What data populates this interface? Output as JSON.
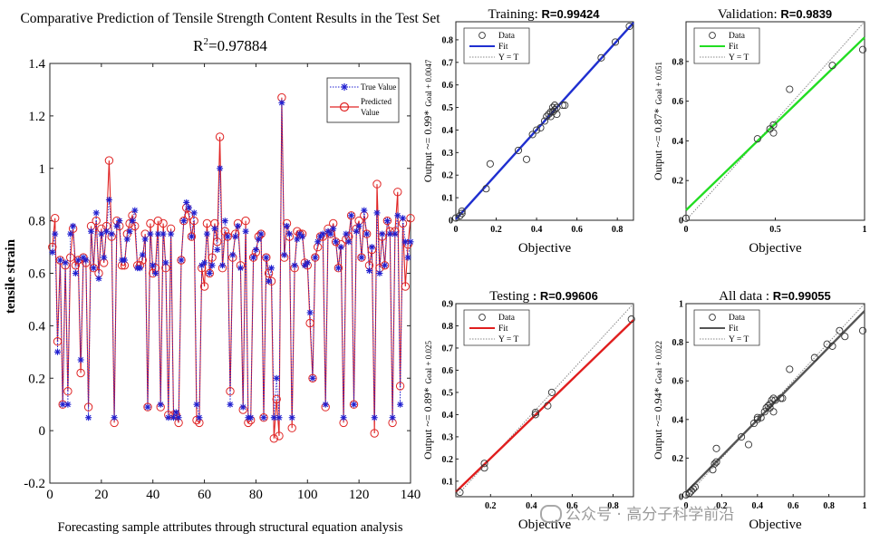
{
  "colors": {
    "true_value": "#1f1fd0",
    "predicted": "#e02424",
    "training_fit": "#1f2fd0",
    "validation_fit": "#22dd22",
    "testing_fit": "#e01e1e",
    "alldata_fit": "#555555",
    "marker": "#333333",
    "yt_line": "#888888"
  },
  "watermark": {
    "icon": "wechat-icon",
    "text": "公众号 · 高分子科学前沿"
  },
  "chart_data": [
    {
      "type": "line",
      "title": "Comparative Prediction of Tensile Strength Content Results in the Test Set",
      "subtitle": "R",
      "subtitle_sup": "2",
      "subtitle_rest": "=0.97884",
      "xlabel": "Forecasting sample attributes through structural equation analysis",
      "ylabel": "tensile strain",
      "xlim": [
        0,
        140
      ],
      "ylim": [
        -0.2,
        1.4
      ],
      "xticks": [
        0,
        20,
        40,
        60,
        80,
        100,
        120,
        140
      ],
      "yticks": [
        -0.2,
        0,
        0.2,
        0.4,
        0.6,
        0.8,
        1,
        1.2,
        1.4
      ],
      "ytick_labels": [
        "-0.2",
        "0",
        "0.2",
        "0.4",
        "0.6",
        "0.8",
        "1",
        "1.2",
        "1.4"
      ],
      "legend": {
        "position": "top-right",
        "entries": [
          "True Value",
          "Predicted",
          "Value"
        ]
      },
      "series": [
        {
          "name": "True Value",
          "values": [
            0.68,
            0.75,
            0.3,
            0.65,
            0.1,
            0.64,
            0.1,
            0.75,
            0.78,
            0.6,
            0.65,
            0.27,
            0.66,
            0.65,
            0.05,
            0.76,
            0.62,
            0.83,
            0.58,
            0.75,
            0.66,
            0.76,
            0.88,
            0.75,
            0.05,
            0.78,
            0.8,
            0.65,
            0.65,
            0.73,
            0.76,
            0.8,
            0.84,
            0.62,
            0.62,
            0.67,
            0.73,
            0.09,
            0.75,
            0.63,
            0.6,
            0.75,
            0.1,
            0.75,
            0.64,
            0.05,
            0.75,
            0.05,
            0.07,
            0.05,
            0.65,
            0.8,
            0.87,
            0.85,
            0.74,
            0.83,
            0.1,
            0.05,
            0.63,
            0.64,
            0.75,
            0.6,
            0.63,
            0.77,
            0.69,
            1.0,
            0.63,
            0.8,
            0.74,
            0.1,
            0.67,
            0.74,
            0.78,
            0.62,
            0.09,
            0.76,
            0.05,
            0.05,
            0.66,
            0.69,
            0.73,
            0.75,
            0.05,
            0.66,
            0.57,
            0.62,
            0.05,
            0.2,
            0.05,
            1.25,
            0.67,
            0.78,
            0.75,
            0.05,
            0.63,
            0.73,
            0.75,
            0.74,
            0.63,
            0.64,
            0.45,
            0.2,
            0.66,
            0.72,
            0.74,
            0.75,
            0.1,
            0.76,
            0.75,
            0.77,
            0.72,
            0.62,
            0.7,
            0.05,
            0.75,
            0.72,
            0.82,
            0.1,
            0.76,
            0.78,
            0.66,
            0.84,
            0.75,
            0.61,
            0.7,
            0.05,
            0.83,
            0.6,
            0.75,
            0.63,
            0.8,
            0.75,
            0.05,
            0.75,
            0.82,
            0.1,
            0.81,
            0.72,
            0.66,
            0.72
          ],
          "marker": "star"
        },
        {
          "name": "Predicted Value",
          "values": [
            0.7,
            0.81,
            0.34,
            0.65,
            0.1,
            0.63,
            0.15,
            0.66,
            0.77,
            0.63,
            0.65,
            0.22,
            0.66,
            0.64,
            0.09,
            0.78,
            0.62,
            0.8,
            0.6,
            0.77,
            0.64,
            0.78,
            1.03,
            0.74,
            0.03,
            0.8,
            0.78,
            0.63,
            0.63,
            0.75,
            0.79,
            0.82,
            0.78,
            0.63,
            0.63,
            0.65,
            0.75,
            0.09,
            0.79,
            0.6,
            0.62,
            0.8,
            0.09,
            0.79,
            0.62,
            0.06,
            0.77,
            0.06,
            0.06,
            0.03,
            0.65,
            0.8,
            0.85,
            0.82,
            0.74,
            0.8,
            0.04,
            0.03,
            0.62,
            0.55,
            0.79,
            0.6,
            0.66,
            0.79,
            0.72,
            1.12,
            0.62,
            0.76,
            0.74,
            0.15,
            0.66,
            0.75,
            0.79,
            0.63,
            0.08,
            0.8,
            0.03,
            0.04,
            0.66,
            0.68,
            0.74,
            0.75,
            0.05,
            0.66,
            0.6,
            0.57,
            -0.03,
            0.12,
            -0.02,
            1.27,
            0.66,
            0.79,
            0.74,
            0.01,
            0.62,
            0.76,
            0.75,
            0.75,
            0.64,
            0.63,
            0.41,
            0.2,
            0.66,
            0.7,
            0.74,
            0.74,
            0.09,
            0.77,
            0.75,
            0.79,
            0.72,
            0.62,
            0.71,
            0.03,
            0.73,
            0.74,
            0.82,
            0.1,
            0.77,
            0.8,
            0.66,
            0.82,
            0.75,
            0.63,
            0.69,
            -0.01,
            0.94,
            0.62,
            0.74,
            0.63,
            0.8,
            0.76,
            0.03,
            0.76,
            0.91,
            0.17,
            0.79,
            0.55,
            0.71,
            0.81
          ],
          "marker": "circle"
        }
      ]
    },
    {
      "type": "scatter",
      "id": "training",
      "title": "Training:",
      "r_text": "R=0.99424",
      "xlabel": "Objective",
      "ylabel_pre": "Output ~= 0.99*",
      "ylabel_post": "Goal + 0.0047",
      "xlim": [
        0,
        0.88
      ],
      "ylim": [
        0,
        0.88
      ],
      "xticks": [
        0,
        0.2,
        0.4,
        0.6,
        0.8
      ],
      "xtick_labels": [
        "0",
        "0.2",
        "0.4",
        "0.6",
        "0.8"
      ],
      "yticks": [
        0,
        0.1,
        0.2,
        0.3,
        0.4,
        0.5,
        0.6,
        0.7,
        0.8
      ],
      "ytick_labels": [
        "0",
        "0.1",
        "0.2",
        "0.3",
        "0.4",
        "0.5",
        "0.6",
        "0.7",
        "0.8"
      ],
      "fit": {
        "slope": 0.99,
        "intercept": 0.0047
      },
      "legend": {
        "position": "top-left",
        "entries": [
          "Data",
          "Fit",
          "Y = T"
        ]
      },
      "points": [
        [
          0.0,
          0.01
        ],
        [
          0.02,
          0.02
        ],
        [
          0.03,
          0.03
        ],
        [
          0.03,
          0.04
        ],
        [
          0.15,
          0.14
        ],
        [
          0.17,
          0.25
        ],
        [
          0.31,
          0.31
        ],
        [
          0.35,
          0.27
        ],
        [
          0.38,
          0.38
        ],
        [
          0.4,
          0.4
        ],
        [
          0.42,
          0.41
        ],
        [
          0.44,
          0.44
        ],
        [
          0.45,
          0.46
        ],
        [
          0.46,
          0.47
        ],
        [
          0.47,
          0.48
        ],
        [
          0.47,
          0.46
        ],
        [
          0.48,
          0.5
        ],
        [
          0.48,
          0.48
        ],
        [
          0.49,
          0.51
        ],
        [
          0.49,
          0.49
        ],
        [
          0.5,
          0.5
        ],
        [
          0.5,
          0.47
        ],
        [
          0.53,
          0.51
        ],
        [
          0.54,
          0.51
        ],
        [
          0.72,
          0.72
        ],
        [
          0.79,
          0.79
        ],
        [
          0.86,
          0.86
        ]
      ]
    },
    {
      "type": "scatter",
      "id": "validation",
      "title": "Validation:",
      "r_text": "R=0.9839",
      "xlabel": "Objective",
      "ylabel_pre": "Output ~= 0.87*",
      "ylabel_post": "Goal + 0.051",
      "xlim": [
        0,
        1
      ],
      "ylim": [
        0,
        1
      ],
      "xticks": [
        0,
        0.5,
        1
      ],
      "xtick_labels": [
        "0",
        "0.5",
        "1"
      ],
      "yticks": [
        0,
        0.2,
        0.4,
        0.6,
        0.8
      ],
      "ytick_labels": [
        "0",
        "0.2",
        "0.4",
        "0.6",
        "0.8"
      ],
      "fit": {
        "slope": 0.87,
        "intercept": 0.051
      },
      "legend": {
        "position": "top-left",
        "entries": [
          "Data",
          "Fit",
          "Y = T"
        ]
      },
      "points": [
        [
          0.0,
          0.01
        ],
        [
          0.4,
          0.41
        ],
        [
          0.47,
          0.46
        ],
        [
          0.49,
          0.44
        ],
        [
          0.49,
          0.48
        ],
        [
          0.58,
          0.66
        ],
        [
          0.82,
          0.78
        ],
        [
          0.99,
          0.86
        ]
      ]
    },
    {
      "type": "scatter",
      "id": "testing",
      "title": "Testing",
      "r_text": ": R=0.99606",
      "xlabel": "Objective",
      "ylabel_pre": "Output ~= 0.89*",
      "ylabel_post": "Goal + 0.025",
      "xlim": [
        0.03,
        0.9
      ],
      "ylim": [
        0.03,
        0.9
      ],
      "xticks": [
        0.2,
        0.4,
        0.6,
        0.8
      ],
      "xtick_labels": [
        "0.2",
        "0.4",
        "0.6",
        "0.8"
      ],
      "yticks": [
        0.1,
        0.2,
        0.3,
        0.4,
        0.5,
        0.6,
        0.7,
        0.8,
        0.9
      ],
      "ytick_labels": [
        "0.1",
        "0.2",
        "0.3",
        "0.4",
        "0.5",
        "0.6",
        "0.7",
        "0.8",
        "0.9"
      ],
      "fit": {
        "slope": 0.89,
        "intercept": 0.025
      },
      "legend": {
        "position": "top-left",
        "entries": [
          "Data",
          "Fit",
          "Y = T"
        ]
      },
      "points": [
        [
          0.05,
          0.05
        ],
        [
          0.17,
          0.16
        ],
        [
          0.17,
          0.18
        ],
        [
          0.42,
          0.4
        ],
        [
          0.42,
          0.41
        ],
        [
          0.48,
          0.44
        ],
        [
          0.5,
          0.5
        ],
        [
          0.89,
          0.83
        ]
      ]
    },
    {
      "type": "scatter",
      "id": "alldata",
      "title": "All data :",
      "r_text": "R=0.99055",
      "xlabel": "Objective",
      "ylabel_pre": "Output ~= 0.94*",
      "ylabel_post": "Goal + 0.022",
      "xlim": [
        0,
        1
      ],
      "ylim": [
        0,
        1
      ],
      "xticks": [
        0,
        0.2,
        0.4,
        0.6,
        0.8,
        1
      ],
      "xtick_labels": [
        "0",
        "0.2",
        "0.4",
        "0.6",
        "0.8",
        "1"
      ],
      "yticks": [
        0,
        0.2,
        0.4,
        0.6,
        0.8,
        1
      ],
      "ytick_labels": [
        "0",
        "0.2",
        "0.4",
        "0.6",
        "0.8",
        "1"
      ],
      "fit": {
        "slope": 0.94,
        "intercept": 0.022
      },
      "legend": {
        "position": "top-left",
        "entries": [
          "Data",
          "Fit",
          "Y = T"
        ]
      },
      "points": [
        [
          0.0,
          0.01
        ],
        [
          0.02,
          0.02
        ],
        [
          0.03,
          0.03
        ],
        [
          0.04,
          0.04
        ],
        [
          0.05,
          0.05
        ],
        [
          0.15,
          0.14
        ],
        [
          0.16,
          0.17
        ],
        [
          0.17,
          0.18
        ],
        [
          0.17,
          0.25
        ],
        [
          0.31,
          0.31
        ],
        [
          0.35,
          0.27
        ],
        [
          0.38,
          0.38
        ],
        [
          0.4,
          0.4
        ],
        [
          0.4,
          0.41
        ],
        [
          0.42,
          0.41
        ],
        [
          0.44,
          0.44
        ],
        [
          0.45,
          0.46
        ],
        [
          0.46,
          0.47
        ],
        [
          0.47,
          0.48
        ],
        [
          0.47,
          0.46
        ],
        [
          0.48,
          0.5
        ],
        [
          0.49,
          0.44
        ],
        [
          0.49,
          0.51
        ],
        [
          0.5,
          0.5
        ],
        [
          0.53,
          0.51
        ],
        [
          0.54,
          0.51
        ],
        [
          0.58,
          0.66
        ],
        [
          0.72,
          0.72
        ],
        [
          0.79,
          0.79
        ],
        [
          0.82,
          0.78
        ],
        [
          0.86,
          0.86
        ],
        [
          0.89,
          0.83
        ],
        [
          0.99,
          0.86
        ]
      ]
    }
  ]
}
